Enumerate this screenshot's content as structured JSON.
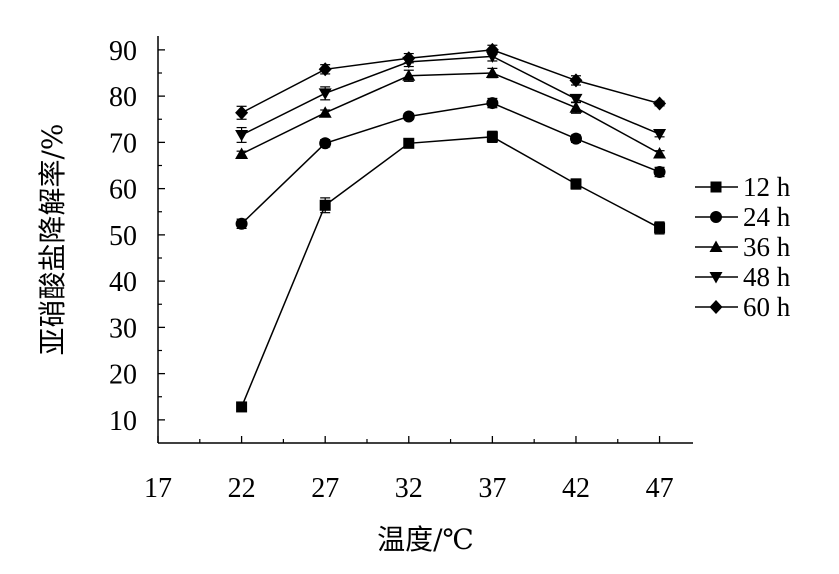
{
  "chart_data": {
    "type": "line",
    "xlabel": "温度/℃",
    "ylabel": "亚硝酸盐降解率/%",
    "xlim": [
      17,
      49
    ],
    "ylim": [
      5,
      93
    ],
    "xticks": [
      "17",
      "22",
      "27",
      "32",
      "37",
      "42",
      "47"
    ],
    "yticks": [
      "10",
      "20",
      "30",
      "40",
      "50",
      "60",
      "70",
      "80",
      "90"
    ],
    "x": [
      22,
      27,
      32,
      37,
      42,
      47
    ],
    "series": [
      {
        "name": "12 h",
        "marker": "square",
        "values": [
          12.8,
          56.4,
          69.8,
          71.2,
          61.0,
          51.5
        ],
        "errors": [
          0.6,
          1.6,
          1.0,
          1.2,
          1.1,
          1.3
        ]
      },
      {
        "name": "24 h",
        "marker": "circle",
        "values": [
          52.4,
          69.8,
          75.6,
          78.5,
          70.8,
          63.6
        ],
        "errors": [
          1.0,
          0.8,
          0.6,
          1.0,
          0.8,
          1.0
        ]
      },
      {
        "name": "36 h",
        "marker": "triangle-up",
        "values": [
          67.5,
          76.4,
          84.4,
          85.0,
          77.5,
          67.6
        ],
        "errors": [
          0.6,
          0.6,
          1.2,
          1.0,
          1.2,
          0.6
        ]
      },
      {
        "name": "48 h",
        "marker": "triangle-down",
        "values": [
          71.6,
          80.6,
          87.4,
          88.6,
          79.4,
          71.8
        ],
        "errors": [
          1.6,
          1.4,
          1.0,
          1.0,
          0.8,
          0.6
        ]
      },
      {
        "name": "60 h",
        "marker": "diamond",
        "values": [
          76.4,
          85.8,
          88.2,
          90.0,
          83.4,
          78.4
        ],
        "errors": [
          1.4,
          1.0,
          1.0,
          1.0,
          1.0,
          0.5
        ]
      }
    ],
    "legend": "right"
  }
}
